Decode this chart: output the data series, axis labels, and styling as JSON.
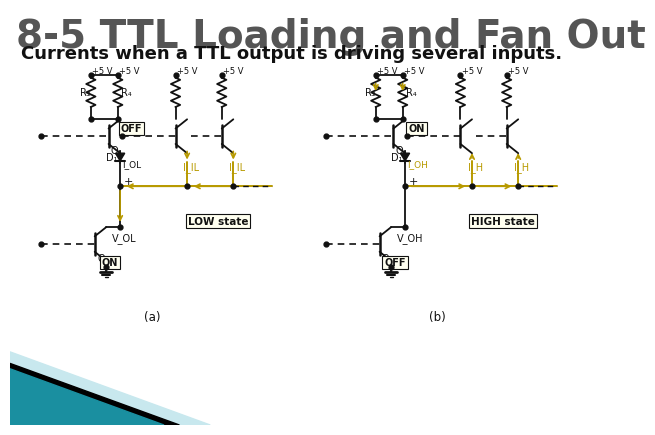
{
  "title": "8-5 TTL Loading and Fan Out",
  "subtitle": "Currents when a TTL output is driving several inputs.",
  "title_fontsize": 28,
  "subtitle_fontsize": 13,
  "title_color": "#555555",
  "subtitle_color": "#111111",
  "bg_color": "#ffffff",
  "bottom_band_color1": "#1a8fa0",
  "bottom_band_color2": "#000000",
  "bottom_band_color3": "#c8e8ee",
  "circuit_color": "#111111",
  "arrow_color": "#b89a00",
  "label_a": "(a)",
  "label_b": "(b)",
  "low_state_label": "LOW state",
  "high_state_label": "HIGH state"
}
